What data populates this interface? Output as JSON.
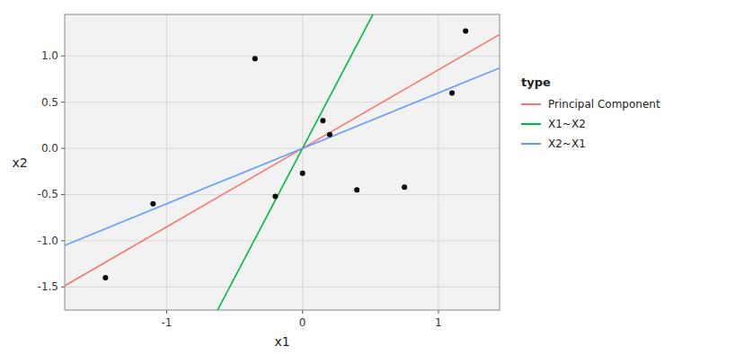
{
  "chart_data": {
    "type": "scatter",
    "xlabel": "x1",
    "ylabel": "x2",
    "x": [
      -1.45,
      -1.1,
      -0.35,
      -0.2,
      0.0,
      0.15,
      0.2,
      0.4,
      0.75,
      1.1,
      1.2
    ],
    "values": [
      -1.4,
      -0.6,
      0.97,
      -0.52,
      -0.27,
      0.3,
      0.15,
      -0.45,
      -0.42,
      0.6,
      1.27
    ],
    "color": "black",
    "marker": "circle",
    "series": [
      {
        "name": "Principal Component",
        "type": "line",
        "color": "#F8766D",
        "slope": 0.85,
        "intercept": 0.0
      },
      {
        "name": "X1~X2",
        "type": "line",
        "color": "#00BA38",
        "slope": 2.8,
        "intercept": 0.0
      },
      {
        "name": "X2~X1",
        "type": "line",
        "color": "#619CFF",
        "slope": 0.6,
        "intercept": 0.0
      }
    ],
    "xlim": [
      -1.75,
      1.45
    ],
    "ylim": [
      -1.75,
      1.45
    ],
    "xticks": [
      -1,
      0,
      1
    ],
    "yticks": [
      -1.5,
      {
        "value": -1.0,
        "label": "-1.0"
      },
      -0.5,
      {
        "value": 0.0,
        "label": "0.0"
      },
      0.5,
      {
        "value": 1.0,
        "label": "1.0"
      }
    ],
    "grid": true,
    "legend": "right",
    "legend_title": "type"
  }
}
